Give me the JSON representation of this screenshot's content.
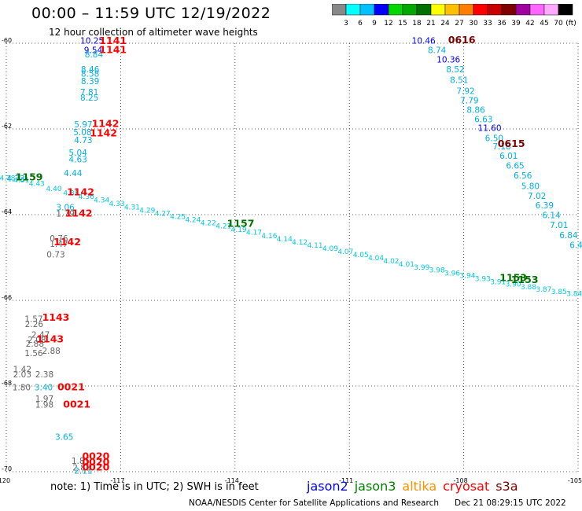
{
  "title": "00:00 – 11:59 UTC 12/19/2022",
  "subtitle": "12 hour collection of altimeter wave heights",
  "colorbar": {
    "unit": "(ft)",
    "colors": [
      "#888888",
      "#00ffff",
      "#00c0ff",
      "#0000ff",
      "#00d800",
      "#00a800",
      "#007000",
      "#ffff00",
      "#ffc000",
      "#ff8000",
      "#ff0000",
      "#c80000",
      "#800000",
      "#a000a0",
      "#ff66ff",
      "#ffaaff",
      "#000000"
    ],
    "labels": [
      "3",
      "6",
      "9",
      "12",
      "15",
      "18",
      "21",
      "24",
      "27",
      "30",
      "33",
      "36",
      "39",
      "42",
      "45",
      "70"
    ]
  },
  "axes": {
    "lon_ticks": [
      "-120",
      "-117",
      "-114",
      "-111",
      "-108",
      "-105"
    ],
    "lat_ticks": [
      "-60",
      "-62",
      "-64",
      "-66",
      "-68",
      "-70"
    ]
  },
  "observations": [
    {
      "t": "10.25",
      "c": "#0000ff",
      "lon": -117.75,
      "lat": -60.01
    },
    {
      "t": "9.54",
      "c": "#0000ff",
      "lon": -117.72,
      "lat": -60.23
    },
    {
      "t": "8.84",
      "c": "#00b0e0",
      "lon": -117.7,
      "lat": -60.33
    },
    {
      "t": "8.46",
      "c": "#00b0e0",
      "lon": -117.8,
      "lat": -60.68
    },
    {
      "t": "8.58",
      "c": "#00b0e0",
      "lon": -117.8,
      "lat": -60.78
    },
    {
      "t": "8.39",
      "c": "#00b0e0",
      "lon": -117.8,
      "lat": -60.95
    },
    {
      "t": "7.81",
      "c": "#00b0e0",
      "lon": -117.82,
      "lat": -61.21
    },
    {
      "t": "8.25",
      "c": "#00b0e0",
      "lon": -117.82,
      "lat": -61.34
    },
    {
      "t": "5.97",
      "c": "#00b0e0",
      "lon": -117.98,
      "lat": -61.96
    },
    {
      "t": "5.08",
      "c": "#00b0e0",
      "lon": -118.0,
      "lat": -62.15
    },
    {
      "t": "4.73",
      "c": "#00b0e0",
      "lon": -117.98,
      "lat": -62.33
    },
    {
      "t": "5.04",
      "c": "#00b0e0",
      "lon": -118.12,
      "lat": -62.62
    },
    {
      "t": "4.63",
      "c": "#00b0e0",
      "lon": -118.12,
      "lat": -62.78
    },
    {
      "t": "4.44",
      "c": "#00b0e0",
      "lon": -118.25,
      "lat": -63.1
    },
    {
      "t": "4.73",
      "c": "#00b0e0",
      "lon": -119.75,
      "lat": -63.23
    },
    {
      "t": "3.06",
      "c": "#00b0e0",
      "lon": -118.45,
      "lat": -63.9
    },
    {
      "t": "1.79",
      "c": "#666666",
      "lon": -118.45,
      "lat": -64.05
    },
    {
      "t": "0.76",
      "c": "#666666",
      "lon": -118.62,
      "lat": -64.62
    },
    {
      "t": "1.47",
      "c": "#666666",
      "lon": -118.62,
      "lat": -64.75
    },
    {
      "t": "0.73",
      "c": "#666666",
      "lon": -118.7,
      "lat": -65.0
    },
    {
      "t": "1.57",
      "c": "#666666",
      "lon": -119.28,
      "lat": -66.5
    },
    {
      "t": "2.26",
      "c": "#666666",
      "lon": -119.27,
      "lat": -66.62
    },
    {
      "t": "2.47",
      "c": "#666666",
      "lon": -119.1,
      "lat": -66.87
    },
    {
      "t": "2.08",
      "c": "#666666",
      "lon": -119.2,
      "lat": -66.99
    },
    {
      "t": "2.88",
      "c": "#666666",
      "lon": -119.25,
      "lat": -67.08
    },
    {
      "t": "2.88",
      "c": "#666666",
      "lon": -118.82,
      "lat": -67.25
    },
    {
      "t": "1.56",
      "c": "#666666",
      "lon": -119.28,
      "lat": -67.3
    },
    {
      "t": "1.42",
      "c": "#666666",
      "lon": -119.58,
      "lat": -67.68
    },
    {
      "t": "2.38",
      "c": "#666666",
      "lon": -119.0,
      "lat": -67.8
    },
    {
      "t": "2.03",
      "c": "#666666",
      "lon": -119.58,
      "lat": -67.8
    },
    {
      "t": "1.80",
      "c": "#666666",
      "lon": -119.6,
      "lat": -68.1
    },
    {
      "t": "3.40",
      "c": "#00b0e0",
      "lon": -119.02,
      "lat": -68.1
    },
    {
      "t": "1.97",
      "c": "#666666",
      "lon": -119.0,
      "lat": -68.37
    },
    {
      "t": "1.98",
      "c": "#666666",
      "lon": -119.0,
      "lat": -68.5
    },
    {
      "t": "3.65",
      "c": "#00b0e0",
      "lon": -118.48,
      "lat": -69.26
    },
    {
      "t": "1.85",
      "c": "#666666",
      "lon": -118.05,
      "lat": -69.82
    },
    {
      "t": "2.83",
      "c": "#666666",
      "lon": -118.02,
      "lat": -69.97
    },
    {
      "t": "2.11",
      "c": "#00b0e0",
      "lon": -117.98,
      "lat": -70.05
    },
    {
      "t": "10.46",
      "c": "#0000ff",
      "lon": -109.05,
      "lat": -60.01
    },
    {
      "t": "8.74",
      "c": "#00b0e0",
      "lon": -108.7,
      "lat": -60.23
    },
    {
      "t": "10.36",
      "c": "#0000ff",
      "lon": -108.4,
      "lat": -60.45
    },
    {
      "t": "8.52",
      "c": "#00b0e0",
      "lon": -108.22,
      "lat": -60.68
    },
    {
      "t": "8.51",
      "c": "#00b0e0",
      "lon": -108.12,
      "lat": -60.93
    },
    {
      "t": "7.92",
      "c": "#00b0e0",
      "lon": -107.95,
      "lat": -61.18
    },
    {
      "t": "7.79",
      "c": "#00b0e0",
      "lon": -107.85,
      "lat": -61.4
    },
    {
      "t": "8.86",
      "c": "#00b0e0",
      "lon": -107.68,
      "lat": -61.62
    },
    {
      "t": "6.63",
      "c": "#00b0e0",
      "lon": -107.48,
      "lat": -61.84
    },
    {
      "t": "11.60",
      "c": "#0000ff",
      "lon": -107.32,
      "lat": -62.05
    },
    {
      "t": "6.50",
      "c": "#00b0e0",
      "lon": -107.2,
      "lat": -62.28
    },
    {
      "t": "7.18",
      "c": "#00b0e0",
      "lon": -107.0,
      "lat": -62.48
    },
    {
      "t": "6.01",
      "c": "#00b0e0",
      "lon": -106.82,
      "lat": -62.7
    },
    {
      "t": "6.65",
      "c": "#00b0e0",
      "lon": -106.65,
      "lat": -62.93
    },
    {
      "t": "6.56",
      "c": "#00b0e0",
      "lon": -106.45,
      "lat": -63.16
    },
    {
      "t": "5.80",
      "c": "#00b0e0",
      "lon": -106.25,
      "lat": -63.4
    },
    {
      "t": "7.02",
      "c": "#00b0e0",
      "lon": -106.08,
      "lat": -63.63
    },
    {
      "t": "6.39",
      "c": "#00b0e0",
      "lon": -105.88,
      "lat": -63.85
    },
    {
      "t": "6.14",
      "c": "#00b0e0",
      "lon": -105.7,
      "lat": -64.08
    },
    {
      "t": "7.01",
      "c": "#00b0e0",
      "lon": -105.5,
      "lat": -64.31
    },
    {
      "t": "6.84",
      "c": "#00b0e0",
      "lon": -105.25,
      "lat": -64.55
    },
    {
      "t": "6.4",
      "c": "#00b0e0",
      "lon": -105.05,
      "lat": -64.78
    }
  ],
  "track_points": [
    {
      "lon": -119.97,
      "lat": -63.2
    },
    {
      "lon": -119.6,
      "lat": -63.25
    },
    {
      "lon": -119.2,
      "lat": -63.33
    },
    {
      "lon": -118.75,
      "lat": -63.45
    },
    {
      "lon": -118.3,
      "lat": -63.55
    },
    {
      "lon": -117.9,
      "lat": -63.63
    },
    {
      "lon": -117.5,
      "lat": -63.72
    },
    {
      "lon": -117.1,
      "lat": -63.8
    },
    {
      "lon": -116.7,
      "lat": -63.88
    },
    {
      "lon": -116.3,
      "lat": -63.95
    },
    {
      "lon": -115.9,
      "lat": -64.03
    },
    {
      "lon": -115.5,
      "lat": -64.1
    },
    {
      "lon": -115.1,
      "lat": -64.17
    },
    {
      "lon": -114.7,
      "lat": -64.25
    },
    {
      "lon": -114.3,
      "lat": -64.32
    },
    {
      "lon": -113.9,
      "lat": -64.4
    },
    {
      "lon": -113.5,
      "lat": -64.47
    },
    {
      "lon": -113.1,
      "lat": -64.55
    },
    {
      "lon": -112.7,
      "lat": -64.62
    },
    {
      "lon": -112.3,
      "lat": -64.7
    },
    {
      "lon": -111.9,
      "lat": -64.77
    },
    {
      "lon": -111.5,
      "lat": -64.84
    },
    {
      "lon": -111.1,
      "lat": -64.92
    },
    {
      "lon": -110.7,
      "lat": -64.99
    },
    {
      "lon": -110.3,
      "lat": -65.06
    },
    {
      "lon": -109.9,
      "lat": -65.14
    },
    {
      "lon": -109.5,
      "lat": -65.21
    },
    {
      "lon": -109.1,
      "lat": -65.28
    },
    {
      "lon": -108.7,
      "lat": -65.35
    },
    {
      "lon": -108.3,
      "lat": -65.42
    },
    {
      "lon": -107.9,
      "lat": -65.48
    },
    {
      "lon": -107.5,
      "lat": -65.55
    },
    {
      "lon": -107.1,
      "lat": -65.62
    },
    {
      "lon": -106.7,
      "lat": -65.68
    },
    {
      "lon": -106.3,
      "lat": -65.74
    },
    {
      "lon": -105.9,
      "lat": -65.8
    },
    {
      "lon": -105.5,
      "lat": -65.85
    },
    {
      "lon": -105.1,
      "lat": -65.9
    }
  ],
  "pass_labels": [
    {
      "t": "1141",
      "c": "#ff0000",
      "lon": -117.2,
      "lat": -60.02
    },
    {
      "t": "1141",
      "c": "#ff0000",
      "lon": -117.2,
      "lat": -60.23
    },
    {
      "t": "1142",
      "c": "#ff0000",
      "lon": -117.4,
      "lat": -61.95
    },
    {
      "t": "1142",
      "c": "#ff0000",
      "lon": -117.45,
      "lat": -62.17
    },
    {
      "t": "1142",
      "c": "#ff0000",
      "lon": -118.05,
      "lat": -63.55
    },
    {
      "t": "1142",
      "c": "#ff0000",
      "lon": -118.1,
      "lat": -64.05
    },
    {
      "t": "1142",
      "c": "#ff0000",
      "lon": -118.4,
      "lat": -64.72
    },
    {
      "t": "1143",
      "c": "#ff0000",
      "lon": -118.7,
      "lat": -66.48
    },
    {
      "t": "1143",
      "c": "#ff0000",
      "lon": -118.85,
      "lat": -66.98
    },
    {
      "t": "0021",
      "c": "#ff0000",
      "lon": -118.3,
      "lat": -68.1
    },
    {
      "t": "0021",
      "c": "#ff0000",
      "lon": -118.15,
      "lat": -68.5
    },
    {
      "t": "0020",
      "c": "#ff0000",
      "lon": -117.65,
      "lat": -69.72
    },
    {
      "t": "0020",
      "c": "#ff0000",
      "lon": -117.65,
      "lat": -69.85
    },
    {
      "t": "0020",
      "c": "#ff0000",
      "lon": -117.65,
      "lat": -69.97
    },
    {
      "t": "0616",
      "c": "#800000",
      "lon": -108.05,
      "lat": -60.0
    },
    {
      "t": "0615",
      "c": "#800000",
      "lon": -106.75,
      "lat": -62.42
    },
    {
      "t": "1159",
      "c": "#007000",
      "lon": -119.4,
      "lat": -63.2
    },
    {
      "t": "1153",
      "c": "#007000",
      "lon": -106.7,
      "lat": -65.55
    },
    {
      "t": "1153",
      "c": "#007000",
      "lon": -106.4,
      "lat": -65.6
    },
    {
      "t": "1157",
      "c": "#007000",
      "lon": -113.85,
      "lat": -64.28
    }
  ],
  "notes": "note:  1) Time is in UTC;  2) SWH is in feet",
  "legend": [
    {
      "name": "jason2",
      "color": "#0000ff"
    },
    {
      "name": "jason3",
      "color": "#008000"
    },
    {
      "name": "altika",
      "color": "#ff9000"
    },
    {
      "name": "cryosat",
      "color": "#ff0000"
    },
    {
      "name": "s3a",
      "color": "#800000"
    }
  ],
  "credit": "NOAA/NESDIS Center for Satellite Applications and Research",
  "credit_date": "Dec 21 08:29:15 UTC 2022"
}
